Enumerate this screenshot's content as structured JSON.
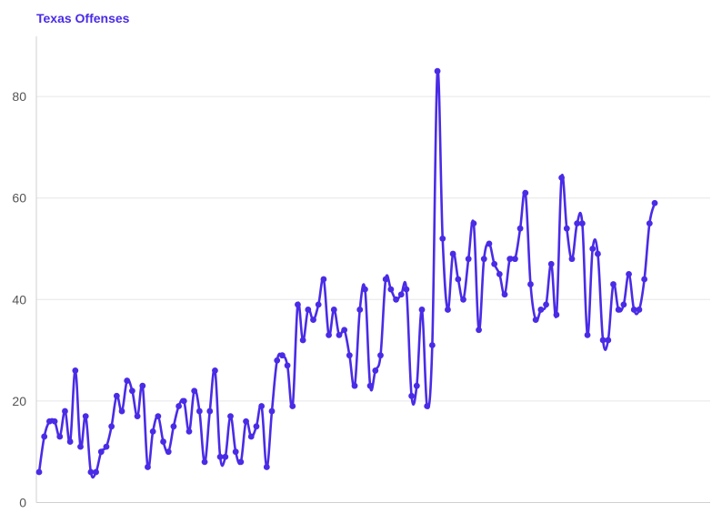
{
  "chart_data": {
    "type": "line",
    "title": "Texas Offenses",
    "xlabel": "",
    "ylabel": "",
    "ylim": [
      0,
      90
    ],
    "yticks": [
      0,
      20,
      40,
      60,
      80
    ],
    "grid": true,
    "colors": {
      "line": "#4a2be6",
      "grid": "#e6e6e6",
      "axis": "#d0d0d0",
      "title": "#4a2be6"
    },
    "series": [
      {
        "values": [
          6,
          13,
          16,
          16,
          13,
          18,
          12,
          26,
          11,
          17,
          6,
          6,
          10,
          11,
          15,
          21,
          18,
          24,
          22,
          17,
          23,
          7,
          14,
          17,
          12,
          10,
          15,
          19,
          20,
          14,
          22,
          18,
          8,
          18,
          26,
          9,
          9,
          17,
          10,
          8,
          16,
          13,
          15,
          19,
          7,
          18,
          28,
          29,
          27,
          19,
          39,
          32,
          38,
          36,
          39,
          44,
          33,
          38,
          33,
          34,
          29,
          23,
          38,
          42,
          23,
          26,
          29,
          44,
          42,
          40,
          41,
          42,
          21,
          23,
          38,
          19,
          31,
          85,
          52,
          38,
          49,
          44,
          40,
          48,
          55,
          34,
          48,
          51,
          47,
          45,
          41,
          48,
          48,
          54,
          61,
          43,
          36,
          38,
          39,
          47,
          37,
          64,
          54,
          48,
          55,
          55,
          33,
          50,
          49,
          32,
          32,
          43,
          38,
          39,
          45,
          38,
          38,
          44,
          55,
          59
        ]
      }
    ]
  }
}
